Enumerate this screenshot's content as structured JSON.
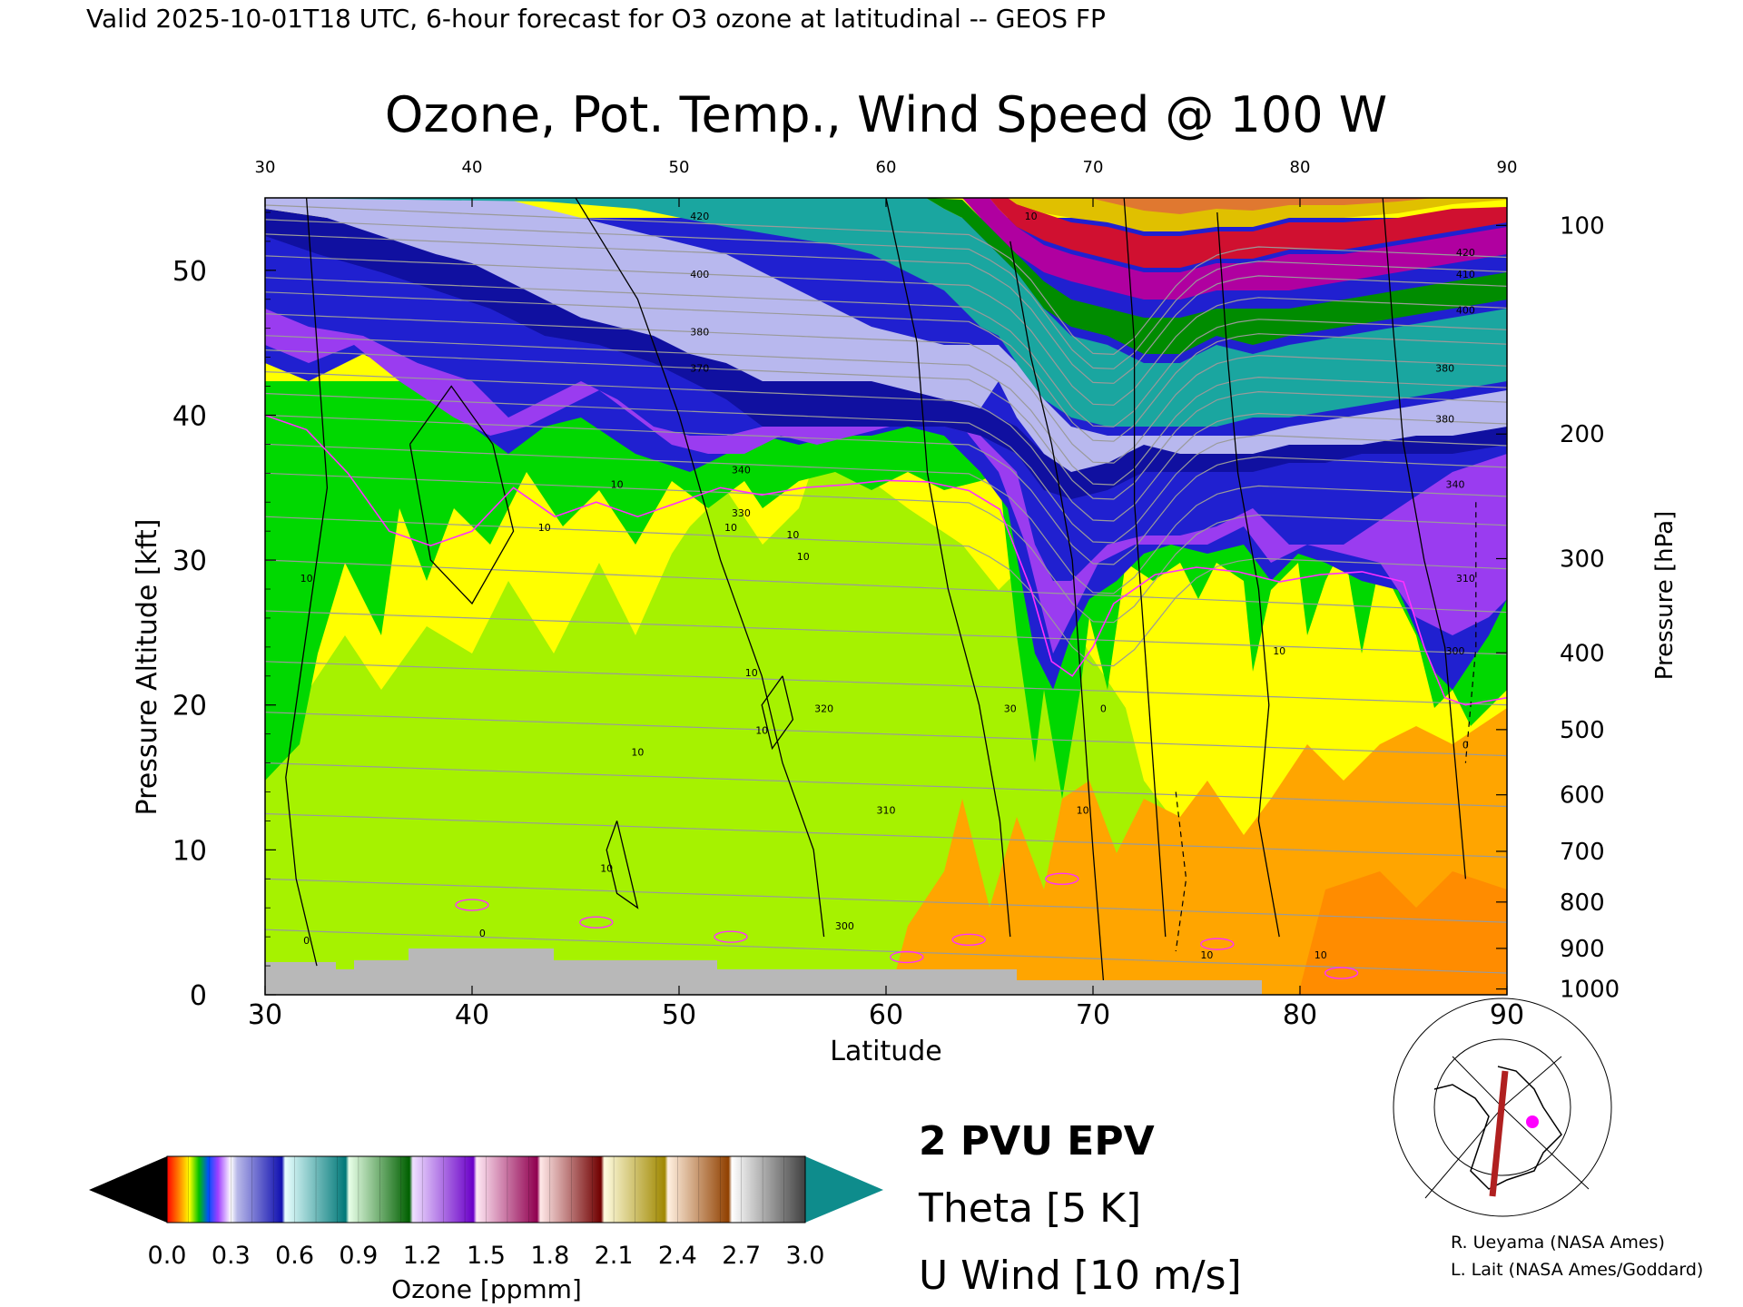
{
  "header": "Valid 2025-10-01T18 UTC, 6-hour forecast for O3 ozone at latitudinal -- GEOS FP",
  "chart_data": {
    "type": "heatmap",
    "title": "Ozone, Pot. Temp., Wind Speed @ 100 W",
    "xlabel": "Latitude",
    "ylabel_left": "Pressure Altitude [kft]",
    "ylabel_right": "Pressure [hPa]",
    "xlim": [
      30,
      90
    ],
    "ylim": [
      0,
      55
    ],
    "x_ticks": [
      30,
      40,
      50,
      60,
      70,
      80,
      90
    ],
    "y_ticks": [
      0,
      10,
      20,
      30,
      40,
      50
    ],
    "pressure_ticks": [
      {
        "hPa": "100",
        "kft": 53.1
      },
      {
        "hPa": "200",
        "kft": 38.7
      },
      {
        "hPa": "300",
        "kft": 30.1
      },
      {
        "hPa": "400",
        "kft": 23.6
      },
      {
        "hPa": "500",
        "kft": 18.3
      },
      {
        "hPa": "600",
        "kft": 13.8
      },
      {
        "hPa": "700",
        "kft": 9.9
      },
      {
        "hPa": "800",
        "kft": 6.4
      },
      {
        "hPa": "900",
        "kft": 3.2
      },
      {
        "hPa": "1000",
        "kft": 0.4
      }
    ],
    "theta_contours": [
      {
        "label": "300",
        "x": 58,
        "kft": 4.5
      },
      {
        "label": "310",
        "x": 60,
        "kft": 12.5
      },
      {
        "label": "320",
        "x": 57,
        "kft": 19.5
      },
      {
        "label": "330",
        "x": 53,
        "kft": 33
      },
      {
        "label": "340",
        "x": 53,
        "kft": 36
      },
      {
        "label": "370",
        "x": 51,
        "kft": 43
      },
      {
        "label": "380",
        "x": 51,
        "kft": 45.5
      },
      {
        "label": "400",
        "x": 51,
        "kft": 49.5
      },
      {
        "label": "420",
        "x": 51,
        "kft": 53.5
      },
      {
        "label": "380",
        "x": 87,
        "kft": 43
      },
      {
        "label": "380",
        "x": 87,
        "kft": 39.5
      },
      {
        "label": "340",
        "x": 87.5,
        "kft": 35
      },
      {
        "label": "310",
        "x": 88,
        "kft": 28.5
      },
      {
        "label": "300",
        "x": 87.5,
        "kft": 23.5
      },
      {
        "label": "420",
        "x": 88,
        "kft": 51
      },
      {
        "label": "410",
        "x": 88,
        "kft": 49.5
      },
      {
        "label": "400",
        "x": 88,
        "kft": 47
      }
    ],
    "wind_contour_labels": [
      {
        "label": "10",
        "x": 32,
        "kft": 28.5
      },
      {
        "label": "10",
        "x": 52.5,
        "kft": 32
      },
      {
        "label": "10",
        "x": 55.5,
        "kft": 31.5
      },
      {
        "label": "10",
        "x": 56,
        "kft": 30
      },
      {
        "label": "10",
        "x": 47,
        "kft": 35
      },
      {
        "label": "10",
        "x": 43.5,
        "kft": 32
      },
      {
        "label": "10",
        "x": 48,
        "kft": 16.5
      },
      {
        "label": "10",
        "x": 53.5,
        "kft": 22
      },
      {
        "label": "10",
        "x": 54,
        "kft": 18
      },
      {
        "label": "10",
        "x": 46.5,
        "kft": 8.5
      },
      {
        "label": "0",
        "x": 32,
        "kft": 3.5
      },
      {
        "label": "0",
        "x": 40.5,
        "kft": 4
      },
      {
        "label": "30",
        "x": 66,
        "kft": 19.5
      },
      {
        "label": "10",
        "x": 69.5,
        "kft": 12.5
      },
      {
        "label": "0",
        "x": 70.5,
        "kft": 19.5
      },
      {
        "label": "10",
        "x": 75.5,
        "kft": 2.5
      },
      {
        "label": "10",
        "x": 79,
        "kft": 23.5
      },
      {
        "label": "10",
        "x": 81,
        "kft": 2.5
      },
      {
        "label": "0",
        "x": 88,
        "kft": 17
      },
      {
        "label": "10",
        "x": 67,
        "kft": 53.5
      }
    ],
    "colorbar": {
      "label": "Ozone [ppmm]",
      "ticks": [
        "0.0",
        "0.3",
        "0.6",
        "0.9",
        "1.2",
        "1.5",
        "1.8",
        "2.1",
        "2.4",
        "2.7",
        "3.0"
      ],
      "range": [
        0.0,
        3.0
      ]
    },
    "legend": [
      {
        "label": "2 PVU EPV",
        "color": "#ff00ff"
      },
      {
        "label": "Theta [5 K]",
        "color": "#a8a8a8"
      },
      {
        "label": "U Wind [10 m/s]",
        "color": "#000000"
      }
    ]
  },
  "credits": [
    "R. Ueyama (NASA Ames)",
    "L. Lait (NASA Ames/Goddard)"
  ]
}
